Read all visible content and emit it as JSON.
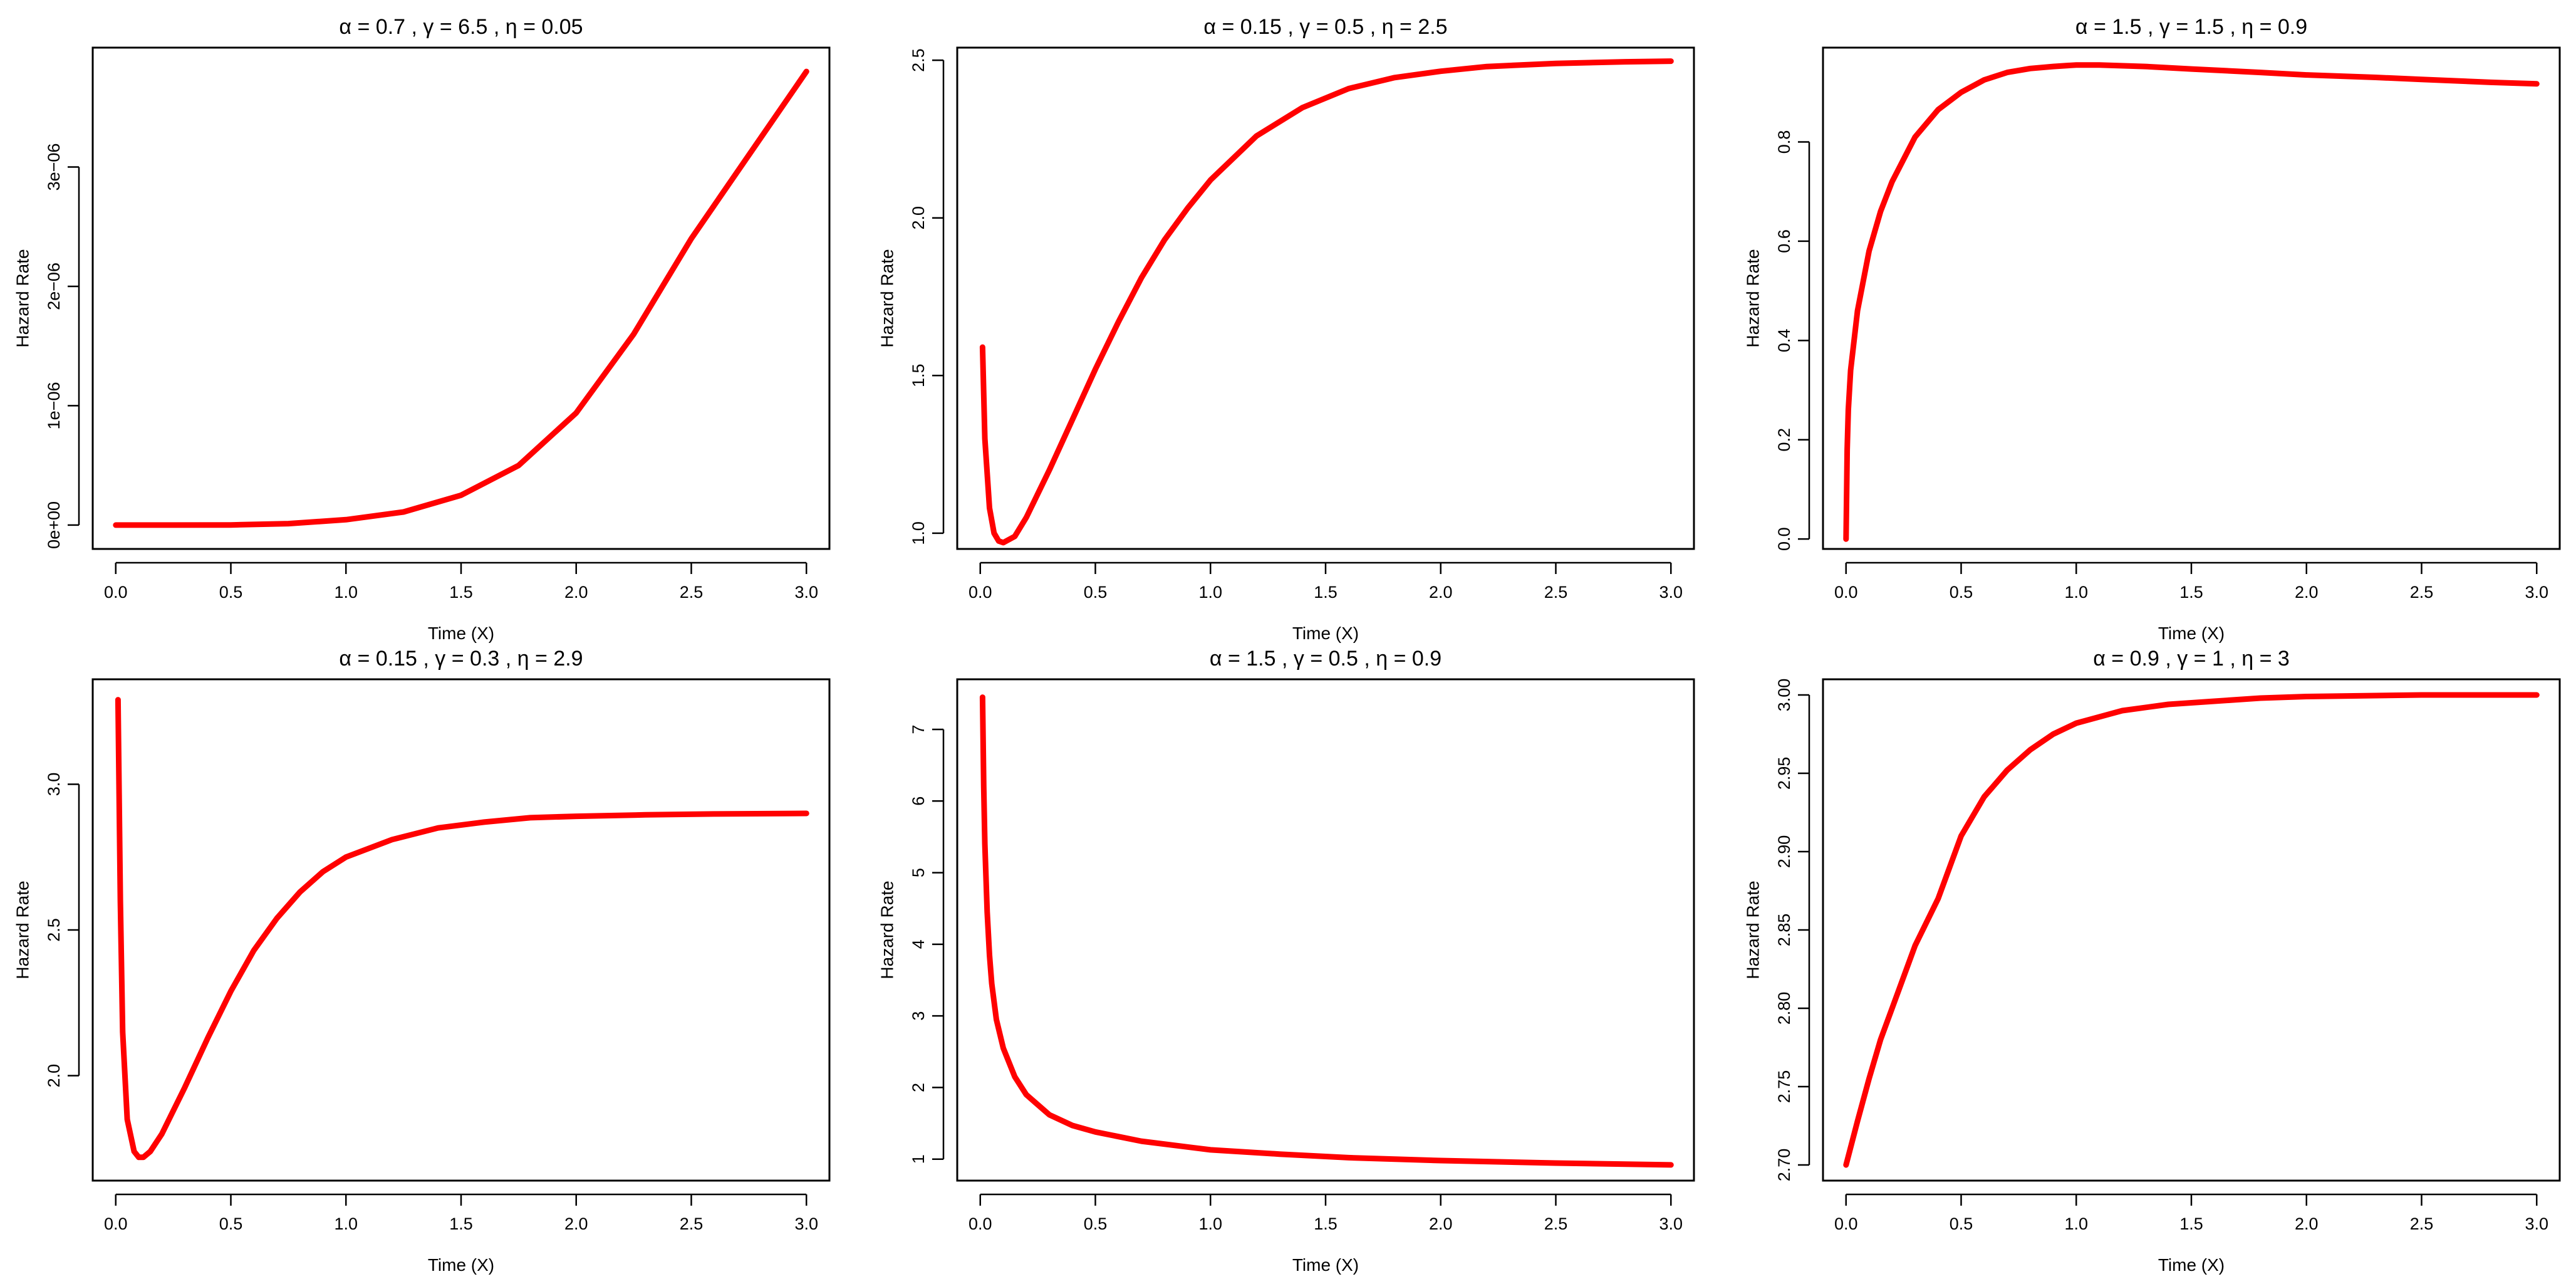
{
  "chart_data": [
    {
      "type": "line",
      "title": "α = 0.7 ,  γ = 6.5 ,  η = 0.05",
      "xlabel": "Time (X)",
      "ylabel": "Hazard Rate",
      "xlim": [
        -0.1,
        3.1
      ],
      "ylim": [
        -2e-07,
        4e-06
      ],
      "xticks": [
        0,
        0.5,
        1,
        1.5,
        2,
        2.5,
        3
      ],
      "xtick_labels": [
        "0.0",
        "0.5",
        "1.0",
        "1.5",
        "2.0",
        "2.5",
        "3.0"
      ],
      "yticks": [
        0,
        1e-06,
        2e-06,
        3e-06
      ],
      "ytick_labels": [
        "0e+00",
        "1e−06",
        "2e−06",
        "3e−06"
      ],
      "color": "#ff0000",
      "series": [
        {
          "x": [
            0,
            0.25,
            0.5,
            0.75,
            1.0,
            1.25,
            1.5,
            1.75,
            2.0,
            2.25,
            2.5,
            2.75,
            3.0
          ],
          "y": [
            0,
            1e-10,
            1e-09,
            1.2e-08,
            4.5e-08,
            1.1e-07,
            2.5e-07,
            5e-07,
            9.4e-07,
            1.6e-06,
            2.4e-06,
            3.1e-06,
            3.8e-06
          ]
        }
      ]
    },
    {
      "type": "line",
      "title": "α = 0.15 ,  γ = 0.5 ,  η = 2.5",
      "xlabel": "Time (X)",
      "ylabel": "Hazard Rate",
      "xlim": [
        -0.1,
        3.1
      ],
      "ylim": [
        0.95,
        2.54
      ],
      "xticks": [
        0,
        0.5,
        1,
        1.5,
        2,
        2.5,
        3
      ],
      "xtick_labels": [
        "0.0",
        "0.5",
        "1.0",
        "1.5",
        "2.0",
        "2.5",
        "3.0"
      ],
      "yticks": [
        1.0,
        1.5,
        2.0,
        2.5
      ],
      "ytick_labels": [
        "1.0",
        "1.5",
        "2.0",
        "2.5"
      ],
      "color": "#ff0000",
      "series": [
        {
          "x": [
            0.01,
            0.02,
            0.04,
            0.06,
            0.08,
            0.1,
            0.15,
            0.2,
            0.3,
            0.4,
            0.5,
            0.6,
            0.7,
            0.8,
            0.9,
            1.0,
            1.2,
            1.4,
            1.6,
            1.8,
            2.0,
            2.2,
            2.5,
            2.8,
            3.0
          ],
          "y": [
            1.59,
            1.3,
            1.08,
            1.0,
            0.975,
            0.97,
            0.99,
            1.05,
            1.2,
            1.36,
            1.52,
            1.67,
            1.81,
            1.93,
            2.03,
            2.12,
            2.26,
            2.35,
            2.41,
            2.445,
            2.465,
            2.48,
            2.49,
            2.495,
            2.497
          ]
        }
      ]
    },
    {
      "type": "line",
      "title": "α = 1.5 ,  γ = 1.5 ,  η = 0.9",
      "xlabel": "Time (X)",
      "ylabel": "Hazard Rate",
      "xlim": [
        -0.1,
        3.1
      ],
      "ylim": [
        -0.02,
        0.99
      ],
      "xticks": [
        0,
        0.5,
        1,
        1.5,
        2,
        2.5,
        3
      ],
      "xtick_labels": [
        "0.0",
        "0.5",
        "1.0",
        "1.5",
        "2.0",
        "2.5",
        "3.0"
      ],
      "yticks": [
        0.0,
        0.2,
        0.4,
        0.6,
        0.8
      ],
      "ytick_labels": [
        "0.0",
        "0.2",
        "0.4",
        "0.6",
        "0.8"
      ],
      "color": "#ff0000",
      "series": [
        {
          "x": [
            0,
            0.005,
            0.01,
            0.02,
            0.05,
            0.1,
            0.15,
            0.2,
            0.3,
            0.4,
            0.5,
            0.6,
            0.7,
            0.8,
            0.9,
            1.0,
            1.1,
            1.3,
            1.5,
            1.8,
            2.0,
            2.3,
            2.5,
            2.8,
            3.0
          ],
          "y": [
            0,
            0.18,
            0.26,
            0.34,
            0.46,
            0.58,
            0.66,
            0.72,
            0.81,
            0.865,
            0.9,
            0.925,
            0.94,
            0.948,
            0.952,
            0.955,
            0.955,
            0.952,
            0.947,
            0.94,
            0.935,
            0.93,
            0.926,
            0.92,
            0.917
          ]
        }
      ]
    },
    {
      "type": "line",
      "title": "α = 0.15 ,  γ = 0.3 ,  η = 2.9",
      "xlabel": "Time (X)",
      "ylabel": "Hazard Rate",
      "xlim": [
        -0.1,
        3.1
      ],
      "ylim": [
        1.64,
        3.36
      ],
      "xticks": [
        0,
        0.5,
        1,
        1.5,
        2,
        2.5,
        3
      ],
      "xtick_labels": [
        "0.0",
        "0.5",
        "1.0",
        "1.5",
        "2.0",
        "2.5",
        "3.0"
      ],
      "yticks": [
        2.0,
        2.5,
        3.0
      ],
      "ytick_labels": [
        "2.0",
        "2.5",
        "3.0"
      ],
      "color": "#ff0000",
      "series": [
        {
          "x": [
            0.01,
            0.02,
            0.03,
            0.05,
            0.08,
            0.1,
            0.12,
            0.15,
            0.2,
            0.3,
            0.4,
            0.5,
            0.6,
            0.7,
            0.8,
            0.9,
            1.0,
            1.2,
            1.4,
            1.6,
            1.8,
            2.0,
            2.3,
            2.6,
            3.0
          ],
          "y": [
            3.29,
            2.6,
            2.15,
            1.85,
            1.74,
            1.72,
            1.72,
            1.74,
            1.8,
            1.96,
            2.13,
            2.29,
            2.43,
            2.54,
            2.63,
            2.7,
            2.75,
            2.81,
            2.85,
            2.87,
            2.885,
            2.89,
            2.895,
            2.898,
            2.9
          ]
        }
      ]
    },
    {
      "type": "line",
      "title": "α = 1.5 ,  γ = 0.5 ,  η = 0.9",
      "xlabel": "Time (X)",
      "ylabel": "Hazard Rate",
      "xlim": [
        -0.1,
        3.1
      ],
      "ylim": [
        0.7,
        7.7
      ],
      "xticks": [
        0,
        0.5,
        1,
        1.5,
        2,
        2.5,
        3
      ],
      "xtick_labels": [
        "0.0",
        "0.5",
        "1.0",
        "1.5",
        "2.0",
        "2.5",
        "3.0"
      ],
      "yticks": [
        1,
        2,
        3,
        4,
        5,
        6,
        7
      ],
      "ytick_labels": [
        "1",
        "2",
        "3",
        "4",
        "5",
        "6",
        "7"
      ],
      "color": "#ff0000",
      "series": [
        {
          "x": [
            0.01,
            0.015,
            0.02,
            0.03,
            0.04,
            0.05,
            0.07,
            0.1,
            0.15,
            0.2,
            0.3,
            0.4,
            0.5,
            0.7,
            1.0,
            1.3,
            1.6,
            2.0,
            2.5,
            3.0
          ],
          "y": [
            7.45,
            6.2,
            5.4,
            4.45,
            3.85,
            3.45,
            2.95,
            2.55,
            2.15,
            1.9,
            1.62,
            1.47,
            1.38,
            1.25,
            1.13,
            1.07,
            1.02,
            0.98,
            0.945,
            0.92
          ]
        }
      ]
    },
    {
      "type": "line",
      "title": "α = 0.9 ,  γ = 1 ,  η = 3",
      "xlabel": "Time (X)",
      "ylabel": "Hazard Rate",
      "xlim": [
        -0.1,
        3.1
      ],
      "ylim": [
        2.69,
        3.01
      ],
      "xticks": [
        0,
        0.5,
        1,
        1.5,
        2,
        2.5,
        3
      ],
      "xtick_labels": [
        "0.0",
        "0.5",
        "1.0",
        "1.5",
        "2.0",
        "2.5",
        "3.0"
      ],
      "yticks": [
        2.7,
        2.75,
        2.8,
        2.85,
        2.9,
        2.95,
        3.0
      ],
      "ytick_labels": [
        "2.70",
        "2.75",
        "2.80",
        "2.85",
        "2.90",
        "2.95",
        "3.00"
      ],
      "color": "#ff0000",
      "series": [
        {
          "x": [
            0,
            0.05,
            0.1,
            0.15,
            0.2,
            0.3,
            0.4,
            0.5,
            0.6,
            0.7,
            0.8,
            0.9,
            1.0,
            1.2,
            1.4,
            1.6,
            1.8,
            2.0,
            2.5,
            3.0
          ],
          "y": [
            2.7,
            2.728,
            2.755,
            2.78,
            2.8,
            2.84,
            2.87,
            2.91,
            2.935,
            2.952,
            2.965,
            2.975,
            2.982,
            2.99,
            2.994,
            2.996,
            2.998,
            2.999,
            3.0,
            3.0
          ]
        }
      ]
    }
  ]
}
